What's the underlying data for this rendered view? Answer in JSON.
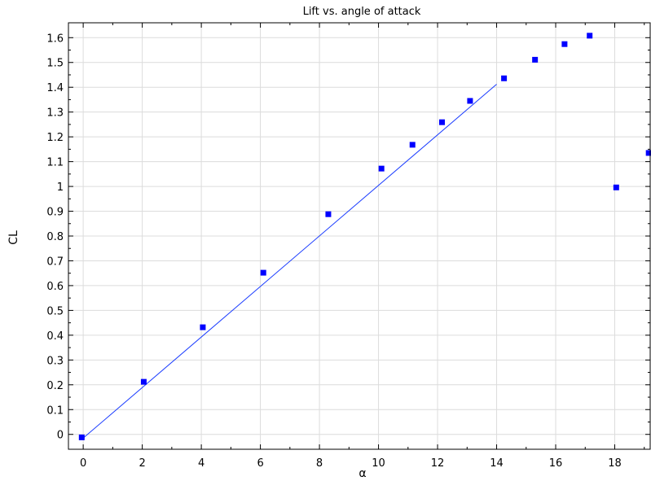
{
  "chart_data": {
    "type": "scatter",
    "title": "Lift vs. angle of attack",
    "xlabel": "α",
    "ylabel": "CL",
    "xlim": [
      -0.5,
      19.2
    ],
    "ylim": [
      -0.06,
      1.66
    ],
    "grid": true,
    "legend": "none",
    "x_ticks": [
      "0",
      "2",
      "4",
      "6",
      "8",
      "10",
      "12",
      "14",
      "16",
      "18"
    ],
    "y_ticks": [
      "0",
      "0.1",
      "0.2",
      "0.3",
      "0.4",
      "0.5",
      "0.6",
      "0.7",
      "0.8",
      "0.9",
      "1",
      "1.1",
      "1.2",
      "1.3",
      "1.4",
      "1.5",
      "1.6"
    ],
    "series": [
      {
        "kind": "markers",
        "marker": "square",
        "color": "#0000ff",
        "x": [
          -0.05,
          2.05,
          4.05,
          6.1,
          8.3,
          10.1,
          11.15,
          12.15,
          13.1,
          14.25,
          15.3,
          16.3,
          17.15,
          18.05,
          19.15
        ],
        "y": [
          -0.012,
          0.212,
          0.432,
          0.652,
          0.888,
          1.072,
          1.168,
          1.259,
          1.345,
          1.436,
          1.511,
          1.574,
          1.608,
          0.996,
          1.135
        ]
      },
      {
        "kind": "line",
        "color": "#1a3cff",
        "x": [
          0,
          14
        ],
        "y": [
          -0.015,
          1.412
        ]
      }
    ]
  }
}
